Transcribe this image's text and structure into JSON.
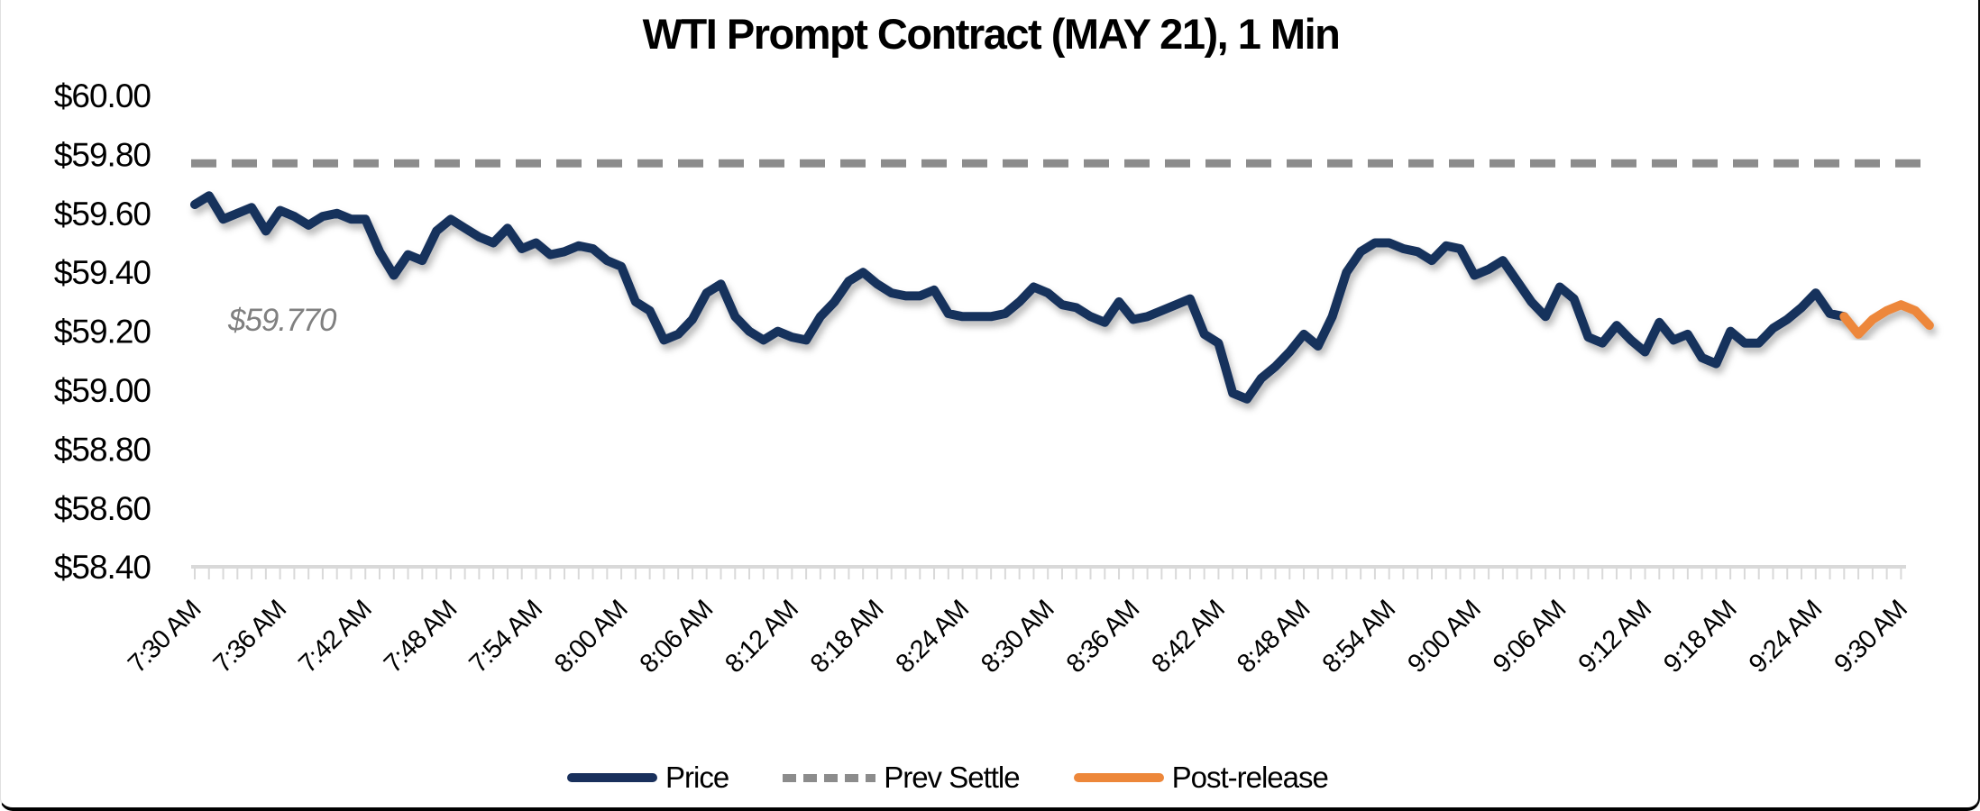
{
  "figure": {
    "title": "WTI Prompt Contract (MAY 21), 1 Min",
    "annotation": {
      "text": "$59.770",
      "color": "#808080"
    },
    "legend": [
      {
        "label": "Price",
        "color": "#19305C",
        "style": "solid"
      },
      {
        "label": "Prev Settle",
        "color": "#8C8C8C",
        "style": "dashed"
      },
      {
        "label": "Post-release",
        "color": "#ED873A",
        "style": "solid"
      }
    ]
  },
  "chart_data": {
    "type": "line",
    "title": "WTI Prompt Contract (MAY 21), 1 Min",
    "xlabel": "",
    "ylabel": "",
    "ylim": [
      58.4,
      60.0
    ],
    "y_ticks": [
      "$60.00",
      "$59.80",
      "$59.60",
      "$59.40",
      "$59.20",
      "$59.00",
      "$58.80",
      "$58.60",
      "$58.40"
    ],
    "y_tick_values": [
      60.0,
      59.8,
      59.6,
      59.4,
      59.2,
      59.0,
      58.8,
      58.6,
      58.4
    ],
    "x_tick_labels": [
      "7:30 AM",
      "7:36 AM",
      "7:42 AM",
      "7:48 AM",
      "7:54 AM",
      "8:00 AM",
      "8:06 AM",
      "8:12 AM",
      "8:18 AM",
      "8:24 AM",
      "8:30 AM",
      "8:36 AM",
      "8:42 AM",
      "8:48 AM",
      "8:54 AM",
      "9:00 AM",
      "9:06 AM",
      "9:12 AM",
      "9:18 AM",
      "9:24 AM",
      "9:30 AM"
    ],
    "x_label_interval_minutes": 6,
    "x_minor_tick_minutes": 1,
    "grid": "off",
    "legend_position": "bottom-center",
    "prev_settle": 59.77,
    "prev_settle_label": "$59.770",
    "colors": {
      "price": "#19305C",
      "prev_settle": "#8C8C8C",
      "post_release": "#ED873A",
      "axis_ticks": "#D9D9D9"
    },
    "series": [
      {
        "name": "Price",
        "color": "#19305C",
        "start_minute": 0,
        "interval_minutes": 1,
        "values": [
          59.63,
          59.66,
          59.58,
          59.6,
          59.62,
          59.54,
          59.61,
          59.59,
          59.56,
          59.59,
          59.6,
          59.58,
          59.58,
          59.47,
          59.39,
          59.46,
          59.44,
          59.54,
          59.58,
          59.55,
          59.52,
          59.5,
          59.55,
          59.48,
          59.5,
          59.46,
          59.47,
          59.49,
          59.48,
          59.44,
          59.42,
          59.3,
          59.27,
          59.17,
          59.19,
          59.24,
          59.33,
          59.36,
          59.25,
          59.2,
          59.17,
          59.2,
          59.18,
          59.17,
          59.25,
          59.3,
          59.37,
          59.4,
          59.36,
          59.33,
          59.32,
          59.32,
          59.34,
          59.26,
          59.25,
          59.25,
          59.25,
          59.26,
          59.3,
          59.35,
          59.33,
          59.29,
          59.28,
          59.25,
          59.23,
          59.3,
          59.24,
          59.25,
          59.27,
          59.29,
          59.31,
          59.19,
          59.16,
          58.99,
          58.97,
          59.04,
          59.08,
          59.13,
          59.19,
          59.15,
          59.25,
          59.4,
          59.47,
          59.5,
          59.5,
          59.48,
          59.47,
          59.44,
          59.49,
          59.48,
          59.39,
          59.41,
          59.44,
          59.37,
          59.3,
          59.25,
          59.35,
          59.31,
          59.18,
          59.16,
          59.22,
          59.17,
          59.13,
          59.23,
          59.17,
          59.19,
          59.11,
          59.09,
          59.2,
          59.16,
          59.16,
          59.21,
          59.24,
          59.28,
          59.33,
          59.26,
          59.25
        ]
      },
      {
        "name": "Post-release",
        "color": "#ED873A",
        "start_minute": 116,
        "interval_minutes": 1,
        "values": [
          59.25,
          59.19,
          59.24,
          59.27,
          59.29,
          59.27,
          59.22
        ]
      },
      {
        "name": "Prev Settle",
        "color": "#8C8C8C",
        "style": "dashed",
        "constant_value": 59.77
      }
    ]
  }
}
